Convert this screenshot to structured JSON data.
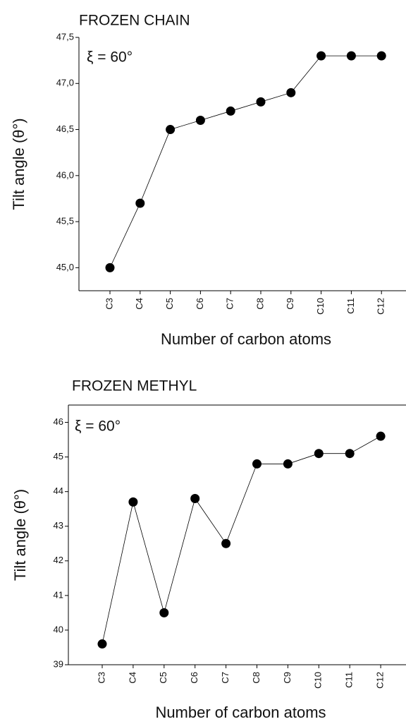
{
  "chart_data": [
    {
      "type": "line",
      "title": "FROZEN CHAIN",
      "annotation": "ξ = 60°",
      "x_label": "Number of carbon atoms",
      "y_label": "Tilt angle (θ°)",
      "categories": [
        "C3",
        "C4",
        "C5",
        "C6",
        "C7",
        "C8",
        "C9",
        "C10",
        "C11",
        "C12"
      ],
      "values": [
        45.0,
        45.7,
        46.5,
        46.6,
        46.7,
        46.8,
        46.9,
        47.3,
        47.3,
        47.3
      ],
      "color": "#000000",
      "ylim": [
        44.75,
        47.5
      ],
      "yticks": [
        {
          "value": 45.0,
          "label": "45,0"
        },
        {
          "value": 45.5,
          "label": "45,5"
        },
        {
          "value": 46.0,
          "label": "46,0"
        },
        {
          "value": 46.5,
          "label": "46,5"
        },
        {
          "value": 47.0,
          "label": "47,0"
        },
        {
          "value": 47.5,
          "label": "47,5"
        }
      ]
    },
    {
      "type": "line",
      "title": "FROZEN METHYL",
      "annotation": "ξ = 60°",
      "x_label": "Number of carbon atoms",
      "y_label": "Tilt angle (θ°)",
      "categories": [
        "C3",
        "C4",
        "C5",
        "C6",
        "C7",
        "C8",
        "C9",
        "C10",
        "C11",
        "C12"
      ],
      "values": [
        39.6,
        43.7,
        40.5,
        43.8,
        42.5,
        44.8,
        44.8,
        45.1,
        45.1,
        45.6
      ],
      "color": "#000000",
      "ylim": [
        39,
        46.5
      ],
      "yticks": [
        39,
        40,
        41,
        42,
        43,
        44,
        45,
        46
      ]
    }
  ]
}
